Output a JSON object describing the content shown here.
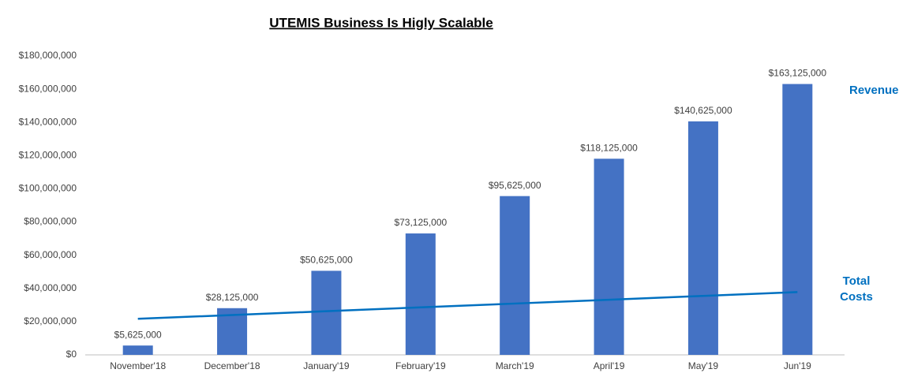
{
  "chart_data": {
    "type": "bar",
    "title": "UTEMIS Business Is Higly Scalable",
    "categories": [
      "November'18",
      "December'18",
      "January'19",
      "February'19",
      "March'19",
      "April'19",
      "May'19",
      "Jun'19"
    ],
    "series": [
      {
        "name": "Revenues",
        "type": "bar",
        "color": "#4472c4",
        "values": [
          5625000,
          28125000,
          50625000,
          73125000,
          95625000,
          118125000,
          140625000,
          163125000
        ],
        "value_labels": [
          "$5,625,000",
          "$28,125,000",
          "$50,625,000",
          "$73,125,000",
          "$95,625,000",
          "$118,125,000",
          "$140,625,000",
          "$163,125,000"
        ]
      },
      {
        "name": "Total Costs",
        "type": "line",
        "color": "#0070c0",
        "values": [
          21700000,
          24000000,
          26300000,
          28600000,
          30900000,
          33200000,
          35500000,
          37800000
        ]
      }
    ],
    "ylim": [
      0,
      180000000
    ],
    "yticks": [
      {
        "value": 0,
        "label": "$0"
      },
      {
        "value": 20000000,
        "label": "$20,000,000"
      },
      {
        "value": 40000000,
        "label": "$40,000,000"
      },
      {
        "value": 60000000,
        "label": "$60,000,000"
      },
      {
        "value": 80000000,
        "label": "$80,000,000"
      },
      {
        "value": 100000000,
        "label": "$100,000,000"
      },
      {
        "value": 120000000,
        "label": "$120,000,000"
      },
      {
        "value": 140000000,
        "label": "$140,000,000"
      },
      {
        "value": 160000000,
        "label": "$160,000,000"
      },
      {
        "value": 180000000,
        "label": "$180,000,000"
      }
    ],
    "grid": false
  }
}
